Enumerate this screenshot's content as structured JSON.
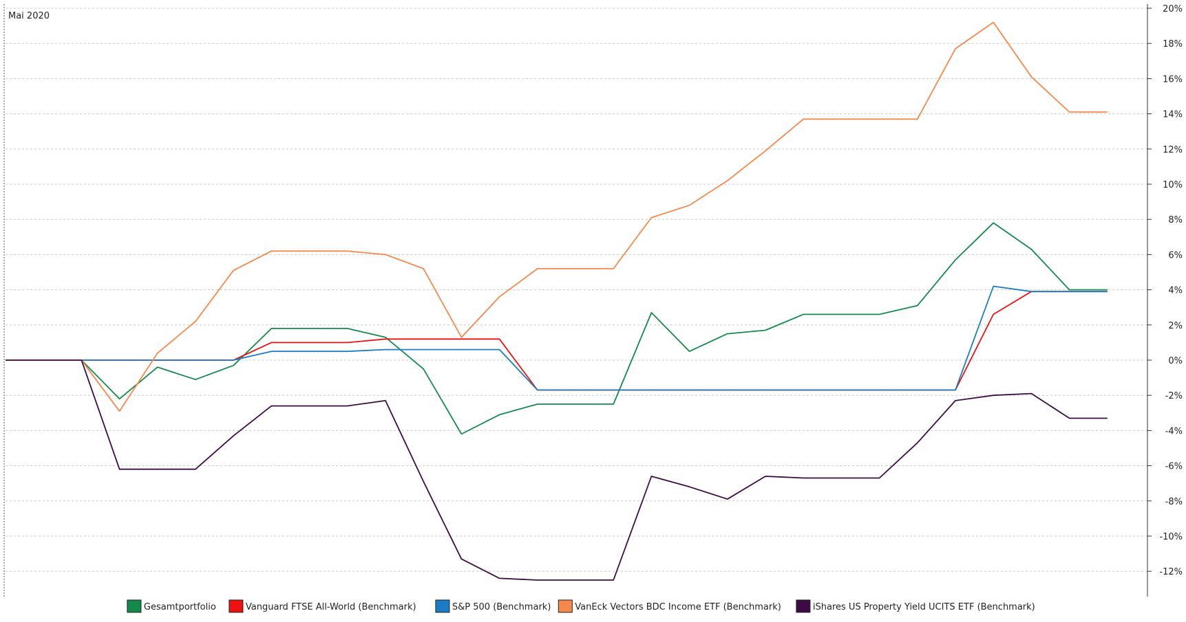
{
  "chart_data": {
    "type": "line",
    "period_label": "Mai 2020",
    "x": [
      0,
      1,
      2,
      3,
      4,
      5,
      6,
      7,
      8,
      9,
      10,
      11,
      12,
      13,
      14,
      15,
      16,
      17,
      18,
      19,
      20,
      21,
      22,
      23,
      24,
      25,
      26,
      27,
      28,
      29
    ],
    "ylim": [
      -13.5,
      20
    ],
    "yticks": [
      20,
      18,
      16,
      14,
      12,
      10,
      8,
      6,
      4,
      2,
      0,
      -2,
      -4,
      -6,
      -8,
      -10,
      -12
    ],
    "ytick_labels": [
      "20%",
      "18%",
      "16%",
      "14%",
      "12%",
      "10%",
      "8%",
      "6%",
      "4%",
      "2%",
      "0%",
      "-2%",
      "-4%",
      "-6%",
      "-8%",
      "-10%",
      "-12%"
    ],
    "grid": true,
    "legend_position": "bottom",
    "series": [
      {
        "name": "Gesamtportfolio",
        "color": "#138a4b",
        "values": [
          0,
          0,
          0,
          -2.2,
          -0.4,
          -1.1,
          -0.3,
          1.8,
          1.8,
          1.8,
          1.3,
          -0.5,
          -4.2,
          -3.1,
          -2.5,
          -2.5,
          -2.5,
          2.7,
          0.5,
          1.5,
          1.7,
          2.6,
          2.6,
          2.6,
          3.1,
          5.7,
          7.8,
          6.3,
          4.0,
          4.0
        ]
      },
      {
        "name": "Vanguard FTSE All-World (Benchmark)",
        "color": "#ee1111",
        "values": [
          0,
          0,
          0,
          0,
          0,
          0,
          0,
          1.0,
          1.0,
          1.0,
          1.2,
          1.2,
          1.2,
          1.2,
          -1.7,
          -1.7,
          -1.7,
          -1.7,
          -1.7,
          -1.7,
          -1.7,
          -1.7,
          -1.7,
          -1.7,
          -1.7,
          -1.7,
          2.6,
          3.9,
          3.9,
          3.9
        ]
      },
      {
        "name": "S&P 500 (Benchmark)",
        "color": "#1a7cc4",
        "values": [
          0,
          0,
          0,
          0,
          0,
          0,
          0,
          0.5,
          0.5,
          0.5,
          0.6,
          0.6,
          0.6,
          0.6,
          -1.7,
          -1.7,
          -1.7,
          -1.7,
          -1.7,
          -1.7,
          -1.7,
          -1.7,
          -1.7,
          -1.7,
          -1.7,
          -1.7,
          4.2,
          3.9,
          3.9,
          3.9
        ]
      },
      {
        "name": "VanEck Vectors BDC Income ETF (Benchmark)",
        "color": "#f5884a",
        "values": [
          0,
          0,
          0,
          -2.9,
          0.4,
          2.2,
          5.1,
          6.2,
          6.2,
          6.2,
          6.0,
          5.2,
          1.3,
          3.6,
          5.2,
          5.2,
          5.2,
          8.1,
          8.8,
          10.2,
          11.9,
          13.7,
          13.7,
          13.7,
          13.7,
          17.7,
          19.2,
          16.1,
          14.1,
          14.1
        ]
      },
      {
        "name": "iShares US Property Yield UCITS ETF (Benchmark)",
        "color": "#3d0a45",
        "values": [
          0,
          0,
          0,
          -6.2,
          -6.2,
          -6.2,
          -4.3,
          -2.6,
          -2.6,
          -2.6,
          -2.3,
          -6.9,
          -11.3,
          -12.4,
          -12.5,
          -12.5,
          -12.5,
          -6.6,
          -7.2,
          -7.9,
          -6.6,
          -6.7,
          -6.7,
          -6.7,
          -4.7,
          -2.3,
          -2.0,
          -1.9,
          -3.3,
          -3.3
        ]
      }
    ]
  }
}
